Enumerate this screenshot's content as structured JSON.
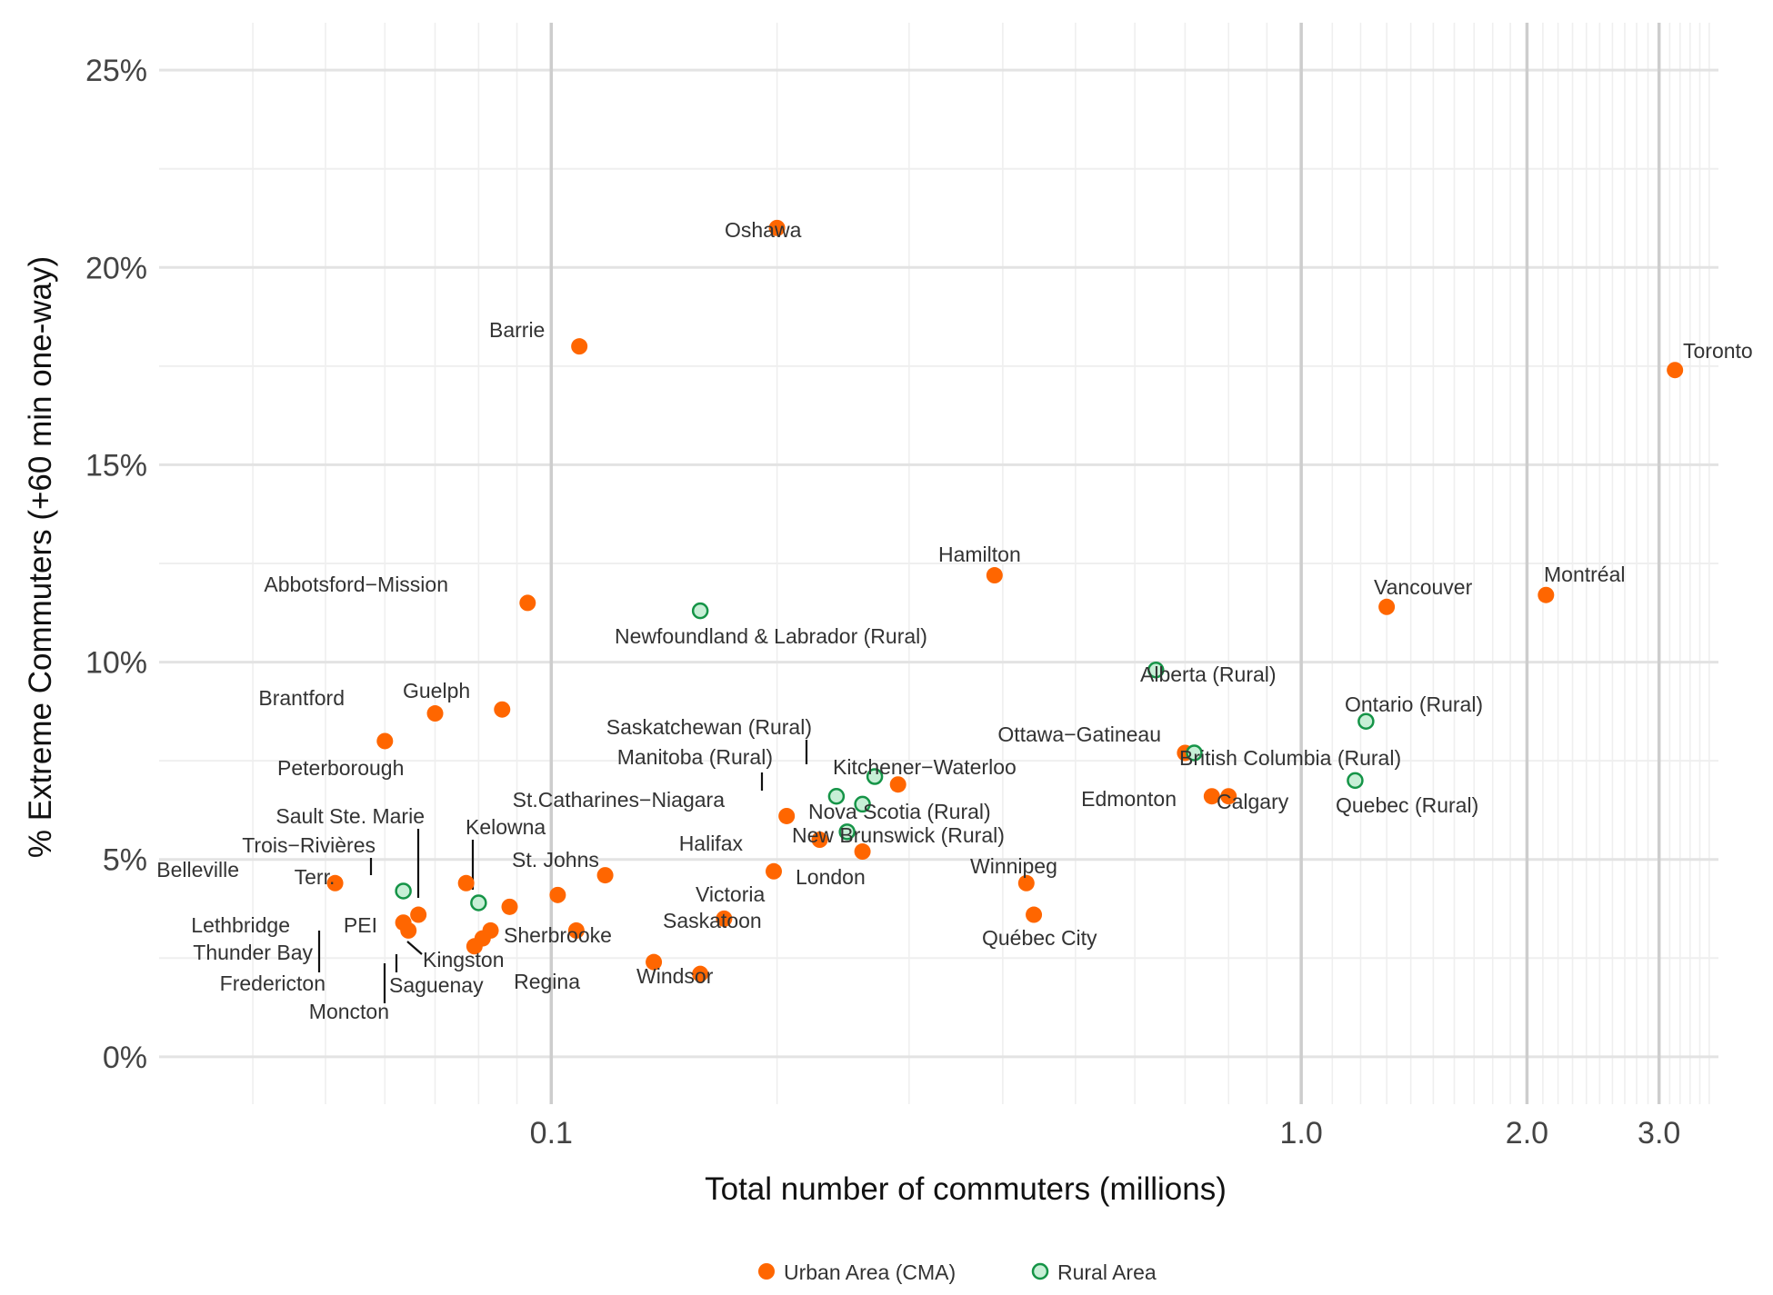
{
  "colors": {
    "urban": "#FF6600",
    "rural_fill": "#C7EFD6",
    "rural_stroke": "#159447",
    "grid_major": "#E3E3E3",
    "grid_minor": "#EFEFEF",
    "grid_highlight": "#CDCDCD"
  },
  "chart_data": {
    "type": "scatter",
    "title": "",
    "xlabel": "Total number of commuters (millions)",
    "ylabel": "% Extreme Commuters (+60 min one-way)",
    "x_scale": "log10",
    "xlim": [
      0.03,
      3.6
    ],
    "ylim": [
      -1.2,
      26.2
    ],
    "x_ticks": [
      {
        "value": 0.1,
        "label": "0.1"
      },
      {
        "value": 1.0,
        "label": "1.0"
      },
      {
        "value": 2.0,
        "label": "2.0"
      },
      {
        "value": 3.0,
        "label": "3.0"
      }
    ],
    "y_ticks": [
      {
        "value": 0,
        "label": "0%"
      },
      {
        "value": 5,
        "label": "5%"
      },
      {
        "value": 10,
        "label": "10%"
      },
      {
        "value": 15,
        "label": "15%"
      },
      {
        "value": 20,
        "label": "20%"
      },
      {
        "value": 25,
        "label": "25%"
      }
    ],
    "grid": true,
    "legend_position": "bottom",
    "series": [
      {
        "name": "Urban Area (CMA)",
        "points": [
          {
            "label": "Toronto",
            "x": 3.15,
            "y": 17.4,
            "label_pos": "above-right"
          },
          {
            "label": "Montréal",
            "x": 2.12,
            "y": 11.7,
            "label_pos": "above-right"
          },
          {
            "label": "Vancouver",
            "x": 1.3,
            "y": 11.4,
            "label_pos": "above-right"
          },
          {
            "label": "Calgary",
            "x": 0.8,
            "y": 6.6,
            "label_pos": "right"
          },
          {
            "label": "Edmonton",
            "x": 0.76,
            "y": 6.6,
            "label_pos": "left"
          },
          {
            "label": "Ottawa−Gatineau",
            "x": 0.7,
            "y": 7.7,
            "label_pos": "above-left"
          },
          {
            "label": "Québec City",
            "x": 0.44,
            "y": 3.6,
            "label_pos": "below-right"
          },
          {
            "label": "Winnipeg",
            "x": 0.43,
            "y": 4.4,
            "label_pos": "above-right"
          },
          {
            "label": "Hamilton",
            "x": 0.39,
            "y": 12.2,
            "label_pos": "above-right"
          },
          {
            "label": "Kitchener−Waterloo",
            "x": 0.29,
            "y": 6.9,
            "label_pos": "above-right"
          },
          {
            "label": "London",
            "x": 0.26,
            "y": 5.2,
            "label_pos": "below-right"
          },
          {
            "label": "St.Catharines−Niagara",
            "x": 0.206,
            "y": 6.1,
            "label_pos": "above-left"
          },
          {
            "label": "Halifax",
            "x": 0.228,
            "y": 5.5,
            "label_pos": "left"
          },
          {
            "label": "Victoria",
            "x": 0.198,
            "y": 4.7,
            "label_pos": "below-right"
          },
          {
            "label": "Oshawa",
            "x": 0.2,
            "y": 21.0,
            "label_pos": "right"
          },
          {
            "label": "Saskatoon",
            "x": 0.17,
            "y": 3.5,
            "label_pos": "right"
          },
          {
            "label": "Windsor",
            "x": 0.158,
            "y": 2.1,
            "label_pos": "right"
          },
          {
            "label": "Regina",
            "x": 0.137,
            "y": 2.4,
            "label_pos": "below-left"
          },
          {
            "label": "St. Johns",
            "x": 0.118,
            "y": 4.6,
            "label_pos": "above-right"
          },
          {
            "label": "Sherbrooke",
            "x": 0.108,
            "y": 3.2,
            "label_pos": "right"
          },
          {
            "label": "Barrie",
            "x": 0.109,
            "y": 18.0,
            "label_pos": "above-right"
          },
          {
            "label": "Kelowna",
            "x": 0.102,
            "y": 4.1,
            "label_pos": "above-right"
          },
          {
            "label": "Abbotsford−Mission",
            "x": 0.093,
            "y": 11.5,
            "label_pos": "above-left"
          },
          {
            "label": "Guelph",
            "x": 0.086,
            "y": 8.8,
            "label_pos": "above-right"
          },
          {
            "label": "Sault Ste. Marie",
            "x": 0.088,
            "y": 3.8,
            "label_pos": "above-left"
          },
          {
            "label": "Kingston",
            "x": 0.083,
            "y": 3.2,
            "label_pos": "below-right"
          },
          {
            "label": "Saguenay",
            "x": 0.081,
            "y": 3.0,
            "label_pos": "below-right"
          },
          {
            "label": "Moncton",
            "x": 0.079,
            "y": 2.8,
            "label_pos": "below-left"
          },
          {
            "label": "Trois−Rivières",
            "x": 0.077,
            "y": 4.4,
            "label_pos": "above-left"
          },
          {
            "label": "Brantford",
            "x": 0.07,
            "y": 8.7,
            "label_pos": "above-left"
          },
          {
            "label": "Fredericton",
            "x": 0.0665,
            "y": 3.6,
            "label_pos": "below-left"
          },
          {
            "label": "Thunder Bay",
            "x": 0.0645,
            "y": 3.2,
            "label_pos": "below-left"
          },
          {
            "label": "Lethbridge",
            "x": 0.0635,
            "y": 3.4,
            "label_pos": "left"
          },
          {
            "label": "Peterborough",
            "x": 0.06,
            "y": 8.0,
            "label_pos": "below-right"
          },
          {
            "label": "Belleville",
            "x": 0.0515,
            "y": 4.4,
            "label_pos": "above-left"
          }
        ]
      },
      {
        "name": "Rural Area",
        "points": [
          {
            "label": "Ontario (Rural)",
            "x": 1.22,
            "y": 8.5,
            "label_pos": "above-right"
          },
          {
            "label": "Quebec (Rural)",
            "x": 1.18,
            "y": 7.0,
            "label_pos": "below-right"
          },
          {
            "label": "British Columbia (Rural)",
            "x": 0.72,
            "y": 7.7,
            "label_pos": "right"
          },
          {
            "label": "Alberta (Rural)",
            "x": 0.64,
            "y": 9.8,
            "label_pos": "right"
          },
          {
            "label": "Saskatchewan (Rural)",
            "x": 0.27,
            "y": 7.1,
            "label_pos": "above-left"
          },
          {
            "label": "Manitoba (Rural)",
            "x": 0.24,
            "y": 6.6,
            "label_pos": "above-left"
          },
          {
            "label": "Nova Scotia (Rural)",
            "x": 0.26,
            "y": 6.4,
            "label_pos": "right"
          },
          {
            "label": "New Brunswick (Rural)",
            "x": 0.248,
            "y": 5.7,
            "label_pos": "right"
          },
          {
            "label": "Newfoundland & Labrador (Rural)",
            "x": 0.158,
            "y": 11.3,
            "label_pos": "below-right"
          },
          {
            "label": "PEI",
            "x": 0.08,
            "y": 3.9,
            "label_pos": "below-left"
          },
          {
            "label": "Terr.",
            "x": 0.0635,
            "y": 4.2,
            "label_pos": "above"
          }
        ]
      }
    ]
  }
}
